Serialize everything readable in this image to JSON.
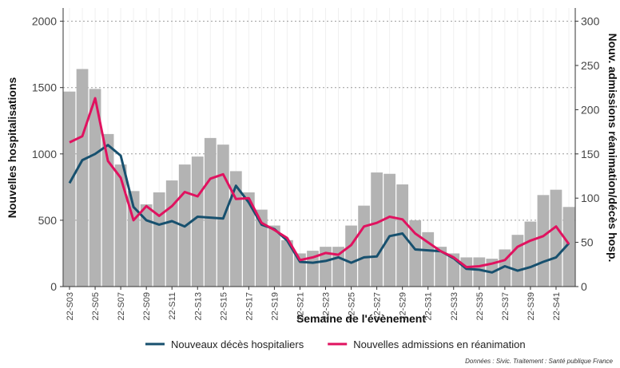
{
  "chart_data": {
    "type": "bar",
    "x_label": "Semaine de l'évènement",
    "y_label": "Nouvelles hospitalisations",
    "y2_label": "Nouv. admissions réanimation/décès hosp.",
    "caption": "Données : Sivic. Traitement : Santé publique France",
    "categories": [
      "22-S03",
      null,
      "22-S05",
      null,
      "22-S07",
      null,
      "22-S09",
      null,
      "22-S11",
      null,
      "22-S13",
      null,
      "22-S15",
      null,
      "22-S17",
      null,
      "22-S19",
      null,
      "22-S21",
      null,
      "22-S23",
      null,
      "22-S25",
      null,
      "22-S27",
      null,
      "22-S29",
      null,
      "22-S31",
      null,
      "22-S33",
      null,
      "22-S35",
      null,
      "22-S37",
      null,
      "22-S39",
      null,
      "22-S41",
      null
    ],
    "series": [
      {
        "name": "Nouvelles hospitalisations",
        "type": "bar",
        "color": "#b3b3b3",
        "values": [
          1470,
          1640,
          1490,
          1150,
          920,
          720,
          620,
          710,
          800,
          920,
          980,
          1120,
          1070,
          870,
          710,
          580,
          460,
          350,
          250,
          270,
          300,
          300,
          460,
          610,
          860,
          850,
          770,
          500,
          410,
          300,
          250,
          220,
          220,
          210,
          280,
          390,
          490,
          690,
          730,
          600
        ]
      },
      {
        "name": "Nouveaux décès hospitaliers",
        "type": "line",
        "axis": "y2",
        "color": "#17506e",
        "values": [
          117,
          143,
          150,
          160,
          148,
          90,
          75,
          70,
          74,
          68,
          79,
          78,
          77,
          114,
          95,
          70,
          65,
          52,
          28,
          27,
          29,
          33,
          27,
          33,
          34,
          57,
          60,
          42,
          41,
          40,
          32,
          20,
          19,
          16,
          23,
          18,
          22,
          28,
          33,
          49
        ]
      },
      {
        "name": "Nouvelles admissions en réanimation",
        "type": "line",
        "axis": "y2",
        "color": "#e0125f",
        "values": [
          163,
          170,
          213,
          142,
          123,
          75,
          91,
          80,
          91,
          107,
          102,
          122,
          127,
          99,
          100,
          72,
          64,
          55,
          30,
          33,
          38,
          36,
          47,
          68,
          72,
          79,
          76,
          60,
          50,
          40,
          33,
          22,
          23,
          26,
          30,
          45,
          52,
          57,
          68,
          48
        ]
      }
    ],
    "ylim": [
      0,
      2100
    ],
    "yticks": [
      0,
      500,
      1000,
      1500,
      2000
    ],
    "y2lim": [
      0,
      315
    ],
    "y2ticks": [
      0,
      50,
      100,
      150,
      200,
      250,
      300
    ],
    "grid": true
  }
}
